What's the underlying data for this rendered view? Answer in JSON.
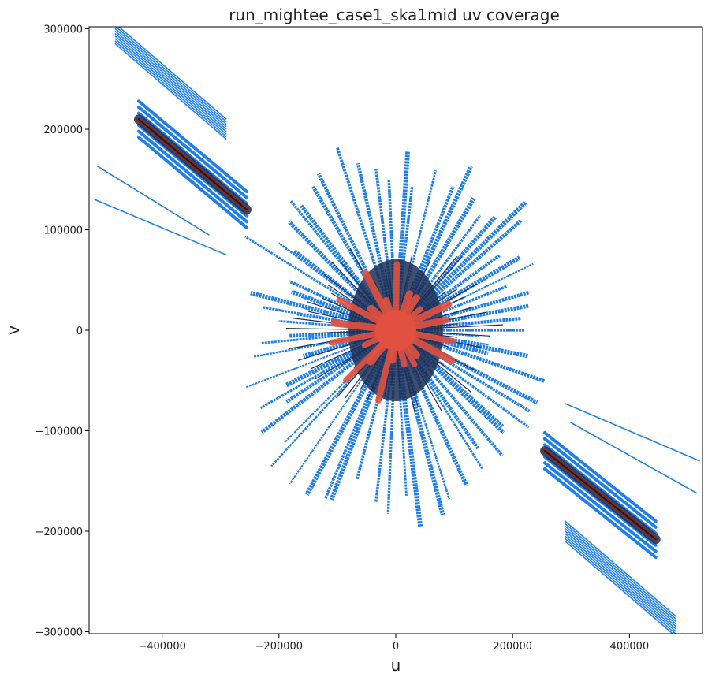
{
  "chart_data": {
    "type": "scatter",
    "title": "run_mightee_case1_ska1mid uv coverage",
    "xlabel": "u",
    "ylabel": "v",
    "xlim": [
      -525000,
      525000
    ],
    "ylim": [
      -302000,
      302000
    ],
    "xticks": [
      -400000,
      -200000,
      0,
      200000,
      400000
    ],
    "xtick_labels": [
      "−400000",
      "−200000",
      "0",
      "200000",
      "400000"
    ],
    "yticks": [
      -300000,
      -200000,
      -100000,
      0,
      100000,
      200000,
      300000
    ],
    "ytick_labels": [
      "−300000",
      "−200000",
      "−100000",
      "0",
      "100000",
      "200000",
      "300000"
    ],
    "grid": false,
    "colors": {
      "outer": "#1f7fef",
      "mid": "#1c2f55",
      "core": "#e2513f"
    },
    "series": [
      {
        "name": "",
        "x": [
          -440000,
          -400000,
          -350000,
          -300000,
          -255000
        ],
        "y": [
          210000,
          185000,
          158000,
          132000,
          120000
        ]
      },
      {
        "name": "",
        "x": [
          255000,
          300000,
          350000,
          400000,
          445000
        ],
        "y": [
          -120000,
          -135000,
          -162000,
          -190000,
          -208000
        ]
      },
      {
        "name": "",
        "x": [
          -50000,
          -30000,
          0,
          30000,
          50000,
          70000,
          -70000,
          90000,
          -95000
        ],
        "y": [
          70000,
          50000,
          0,
          -50000,
          -70000,
          55000,
          -55000,
          -10000,
          12000
        ]
      }
    ],
    "tracks": [
      {
        "x1": -440000,
        "y1": 210000,
        "x2": -255000,
        "y2": 120000,
        "spread": 18000,
        "w": 9
      },
      {
        "x1": 255000,
        "y1": -120000,
        "x2": 445000,
        "y2": -208000,
        "spread": 18000,
        "w": 9
      },
      {
        "x1": -480000,
        "y1": 295000,
        "x2": -290000,
        "y2": 200000,
        "spread": 10000,
        "w": 3
      },
      {
        "x1": 290000,
        "y1": -200000,
        "x2": 480000,
        "y2": -295000,
        "spread": 10000,
        "w": 3
      },
      {
        "x1": -510000,
        "y1": 163000,
        "x2": -320000,
        "y2": 95000,
        "spread": 2000,
        "w": 2
      },
      {
        "x1": -515000,
        "y1": 130000,
        "x2": -290000,
        "y2": 75000,
        "spread": 2000,
        "w": 2
      },
      {
        "x1": 290000,
        "y1": -73000,
        "x2": 520000,
        "y2": -130000,
        "spread": 2000,
        "w": 2
      },
      {
        "x1": 300000,
        "y1": -92000,
        "x2": 515000,
        "y2": -162000,
        "spread": 2000,
        "w": 2
      }
    ]
  }
}
